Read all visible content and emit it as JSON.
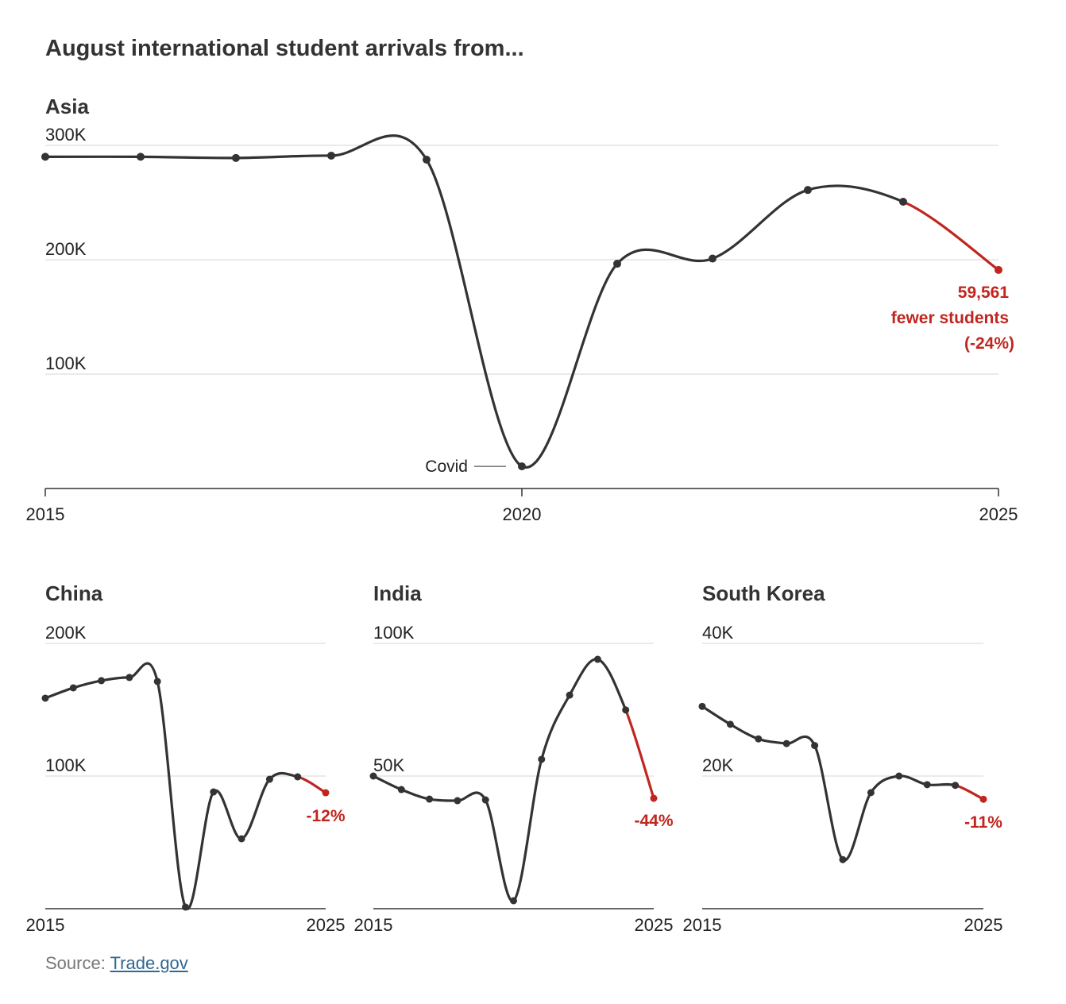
{
  "title": "August international student arrivals from...",
  "source": {
    "label": "Source:",
    "link_text": "Trade.gov"
  },
  "colors": {
    "line": "#333333",
    "decline": "#c0261f",
    "grid": "#d6d6d6"
  },
  "chart_data": [
    {
      "type": "line",
      "title": "Asia",
      "x": [
        2015,
        2016,
        2017,
        2018,
        2019,
        2020,
        2021,
        2022,
        2023,
        2024,
        2025
      ],
      "values": [
        290000,
        290000,
        289000,
        291000,
        287500,
        19400,
        196500,
        201000,
        261000,
        250700,
        191100
      ],
      "ylim": [
        0,
        300000
      ],
      "yticks": [
        {
          "v": 100000,
          "label": "100K"
        },
        {
          "v": 200000,
          "label": "200K"
        },
        {
          "v": 300000,
          "label": "300K"
        }
      ],
      "xticks": [
        {
          "v": 2015,
          "label": "2015"
        },
        {
          "v": 2020,
          "label": "2020"
        },
        {
          "v": 2025,
          "label": "2025"
        }
      ],
      "annotations": {
        "change_lines": [
          "59,561",
          "fewer students",
          "(-24%)"
        ],
        "covid": "Covid"
      },
      "grid": true
    },
    {
      "type": "line",
      "title": "China",
      "x": [
        2015,
        2016,
        2017,
        2018,
        2019,
        2020,
        2021,
        2022,
        2023,
        2024,
        2025
      ],
      "values": [
        158700,
        166500,
        171900,
        174300,
        171300,
        1200,
        88000,
        52700,
        97600,
        99400,
        87400
      ],
      "ylim": [
        0,
        200000
      ],
      "yticks": [
        {
          "v": 100000,
          "label": "100K"
        },
        {
          "v": 200000,
          "label": "200K"
        }
      ],
      "xticks": [
        {
          "v": 2015,
          "label": "2015"
        },
        {
          "v": 2025,
          "label": "2025"
        }
      ],
      "annotations": {
        "change_lines": [
          "-12%"
        ]
      },
      "grid": true
    },
    {
      "type": "line",
      "title": "India",
      "x": [
        2015,
        2016,
        2017,
        2018,
        2019,
        2020,
        2021,
        2022,
        2023,
        2024,
        2025
      ],
      "values": [
        50000,
        44900,
        41300,
        40700,
        41000,
        3000,
        56300,
        80500,
        94000,
        74900,
        41600
      ],
      "ylim": [
        0,
        100000
      ],
      "yticks": [
        {
          "v": 50000,
          "label": "50K"
        },
        {
          "v": 100000,
          "label": "100K"
        }
      ],
      "xticks": [
        {
          "v": 2015,
          "label": "2015"
        },
        {
          "v": 2025,
          "label": "2025"
        }
      ],
      "annotations": {
        "change_lines": [
          "-44%"
        ]
      },
      "grid": true
    },
    {
      "type": "line",
      "title": "South Korea",
      "x": [
        2015,
        2016,
        2017,
        2018,
        2019,
        2020,
        2021,
        2022,
        2023,
        2024,
        2025
      ],
      "values": [
        30500,
        27800,
        25600,
        24900,
        24600,
        7400,
        17500,
        20000,
        18700,
        18600,
        16500
      ],
      "ylim": [
        0,
        40000
      ],
      "yticks": [
        {
          "v": 20000,
          "label": "20K"
        },
        {
          "v": 40000,
          "label": "40K"
        }
      ],
      "xticks": [
        {
          "v": 2015,
          "label": "2015"
        },
        {
          "v": 2025,
          "label": "2025"
        }
      ],
      "annotations": {
        "change_lines": [
          "-11%"
        ]
      },
      "grid": true
    }
  ]
}
